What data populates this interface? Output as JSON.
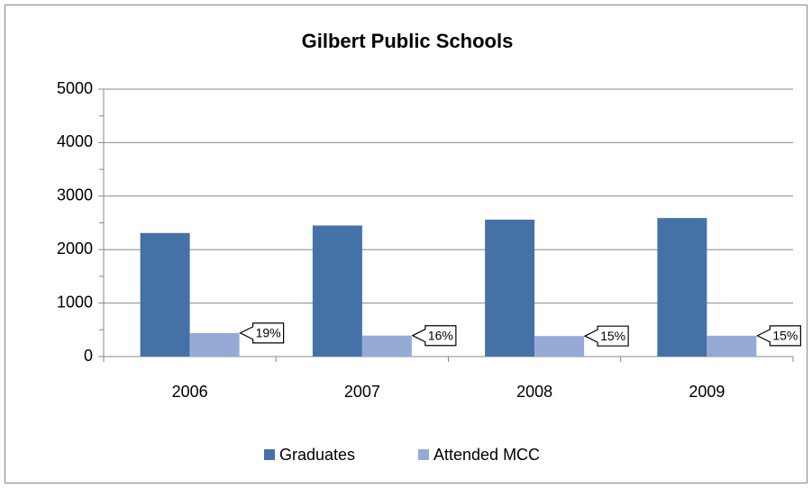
{
  "chart_data": {
    "type": "bar",
    "title": "Gilbert Public Schools",
    "categories": [
      "2006",
      "2007",
      "2008",
      "2009"
    ],
    "series": [
      {
        "name": "Graduates",
        "color": "#4472a7",
        "values": [
          2310,
          2450,
          2560,
          2590
        ]
      },
      {
        "name": "Attended MCC",
        "color": "#95abd6",
        "values": [
          440,
          392,
          384,
          389
        ]
      }
    ],
    "annotations": [
      "19%",
      "16%",
      "15%",
      "15%"
    ],
    "ylim": [
      0,
      5000
    ],
    "yticks": [
      0,
      1000,
      2000,
      3000,
      4000,
      5000
    ],
    "minor_yticks": [
      500,
      1500,
      2500,
      3500,
      4500
    ],
    "grid": true,
    "legend": "bottom"
  }
}
